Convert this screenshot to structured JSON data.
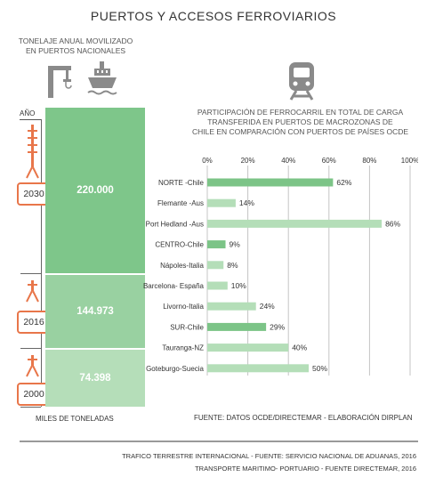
{
  "title": "PUERTOS Y ACCESOS FERROVIARIOS",
  "left_panel": {
    "heading_line1": "TONELAJE ANUAL MOVILIZADO",
    "heading_line2": "EN PUERTOS NACIONALES",
    "year_axis_label": "AÑO",
    "unit_label": "MILES DE TONELADAS",
    "entries": [
      {
        "year": "2030",
        "value": 220000,
        "value_label": "220.000",
        "color": "#7ec68a"
      },
      {
        "year": "2016",
        "value": 144973,
        "value_label": "144.973",
        "color": "#99d1a1"
      },
      {
        "year": "2000",
        "value": 74398,
        "value_label": "74.398",
        "color": "#b5deb9"
      }
    ]
  },
  "icons": {
    "crane": "port-crane-icon",
    "ship": "ship-icon",
    "train": "train-icon"
  },
  "chart_subtitle": {
    "line1": "PARTICIPACIÓN DE FERROCARRIL EN TOTAL DE CARGA",
    "line2": "TRANSFERIDA EN PUERTOS DE MACROZONAS DE",
    "line3": "CHILE EN COMPARACIÓN CON PUERTOS DE PAÍSES OCDE"
  },
  "chart_data": {
    "type": "bar",
    "orientation": "horizontal",
    "categories": [
      "NORTE -Chile",
      "Flemante -Aus",
      "Port Hedland -Aus",
      "CENTRO-Chile",
      "Nápoles-Italia",
      "Barcelona- España",
      "Livorno-Italia",
      "SUR-Chile",
      "Tauranga-NZ",
      "Goteburgo-Suecia"
    ],
    "values": [
      62,
      14,
      86,
      9,
      8,
      10,
      24,
      29,
      40,
      50
    ],
    "value_labels": [
      "62%",
      "14%",
      "86%",
      "9%",
      "8%",
      "10%",
      "24%",
      "29%",
      "40%",
      "50%"
    ],
    "highlight": [
      true,
      false,
      false,
      true,
      false,
      false,
      false,
      true,
      false,
      false
    ],
    "xlim": [
      0,
      100
    ],
    "xticks": [
      "0%",
      "20%",
      "40%",
      "60%",
      "80%",
      "100%"
    ],
    "grid": true,
    "colors": {
      "chile": "#7cc487",
      "oecd": "#b4deb8"
    }
  },
  "source_note": "FUENTE: DATOS OCDE/DIRECTEMAR - ELABORACIÓN DIRPLAN",
  "footer": {
    "line1": "TRAFICO TERRESTRE INTERNACIONAL - FUENTE: SERVICIO NACIONAL DE ADUANAS, 2016",
    "line2": "TRANSPORTE MARITIMO- PORTUARIO - FUENTE DIRECTEMAR, 2016"
  }
}
